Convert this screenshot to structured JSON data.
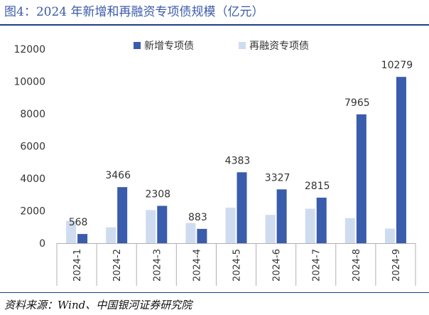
{
  "header": {
    "title": "图4：2024 年新增和再融资专项债规模（亿元）"
  },
  "footer": {
    "source": "资料来源：Wind、中国银河证券研究院"
  },
  "colors": {
    "new": "#3a5cac",
    "refi": "#cfdcf0",
    "axis": "#b0b0b0",
    "text": "#333333",
    "rule": "#1f3c88"
  },
  "chart_data": {
    "type": "bar",
    "title": "",
    "xlabel": "",
    "ylabel": "",
    "ylim": [
      0,
      12000
    ],
    "yticks": [
      0,
      2000,
      4000,
      6000,
      8000,
      10000,
      12000
    ],
    "grid": false,
    "legend_position": "top",
    "categories": [
      "2024-1",
      "2024-2",
      "2024-3",
      "2024-4",
      "2024-5",
      "2024-6",
      "2024-7",
      "2024-8",
      "2024-9"
    ],
    "series": [
      {
        "name": "新增专项债",
        "values": [
          568,
          3466,
          2308,
          883,
          4383,
          3327,
          2815,
          7965,
          10279
        ],
        "labeled": true
      },
      {
        "name": "再融资专项债",
        "values": [
          1380,
          980,
          2050,
          1250,
          2200,
          1750,
          2130,
          1550,
          900
        ],
        "labeled": false
      }
    ]
  }
}
